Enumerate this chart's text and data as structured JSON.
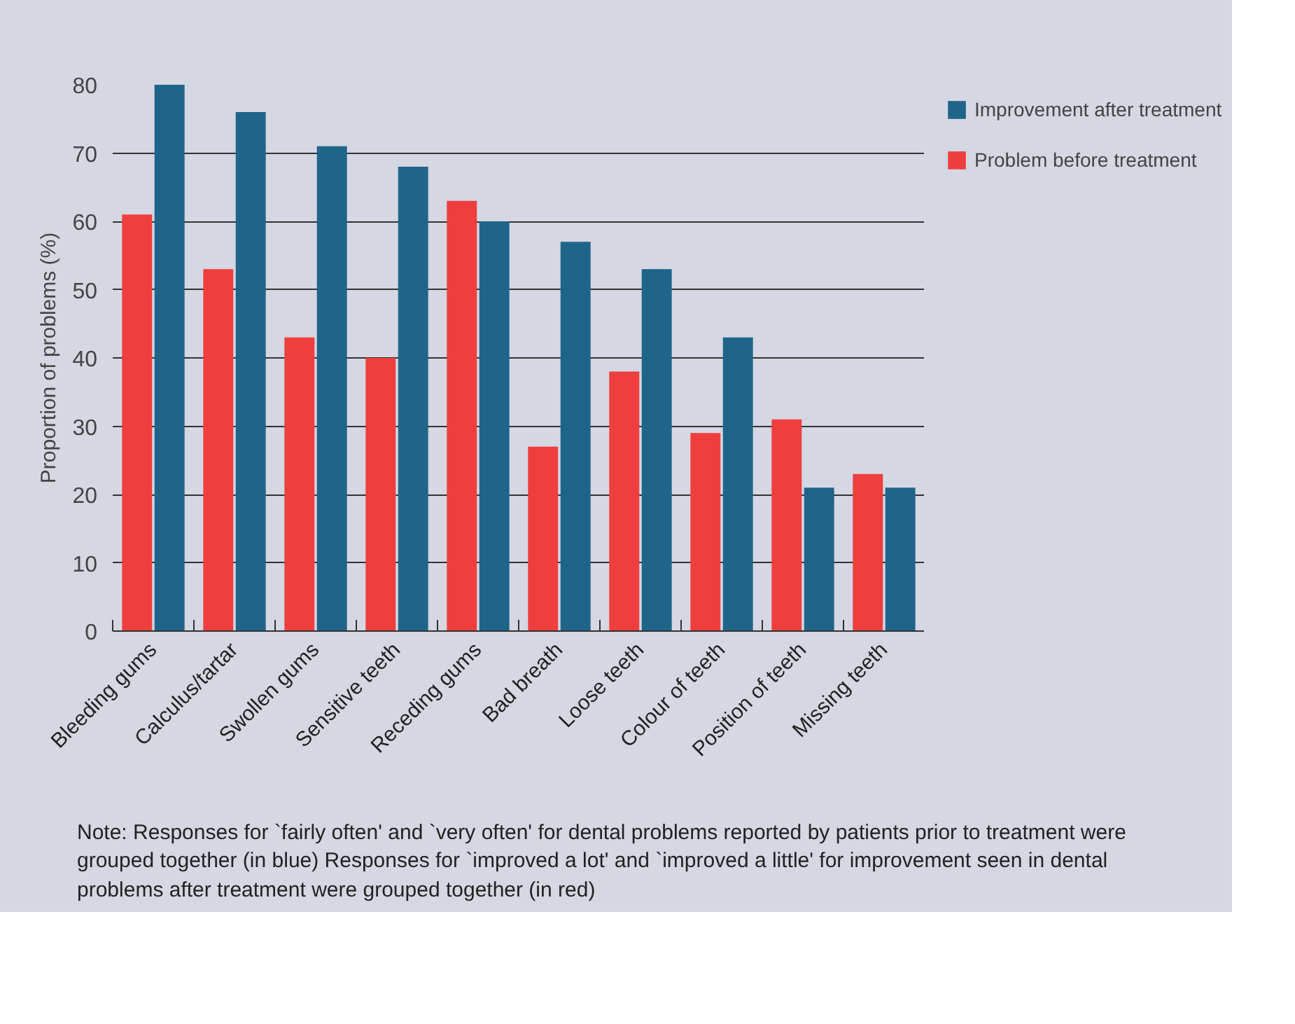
{
  "chart_data": {
    "type": "bar",
    "ylabel": "Proportion of problems (%)",
    "categories": [
      "Bleeding gums",
      "Calculus/tartar",
      "Swollen gums",
      "Sensitive teeth",
      "Receding gums",
      "Bad breath",
      "Loose teeth",
      "Colour of teeth",
      "Position of teeth",
      "Missing teeth"
    ],
    "series": [
      {
        "name": "Problem before treatment",
        "color": "#ef3e3e",
        "values": [
          61,
          53,
          43,
          40,
          63,
          27,
          38,
          29,
          31,
          23
        ]
      },
      {
        "name": "Improvement after treatment",
        "color": "#1f6589",
        "values": [
          80,
          76,
          71,
          68,
          60,
          57,
          53,
          43,
          21,
          21
        ]
      }
    ],
    "ylim": [
      0,
      80
    ],
    "yticks": [
      0,
      10,
      20,
      30,
      40,
      50,
      60,
      70,
      80
    ],
    "grid": "y",
    "legend": "top right",
    "annotations": [
      "Note: Responses for `fairly often' and `very often' for dental problems reported by patients prior to treatment were grouped together (in blue) Responses for `improved a lot' and `improved a little' for improvement seen in dental problems after treatment were grouped together (in red)"
    ]
  }
}
